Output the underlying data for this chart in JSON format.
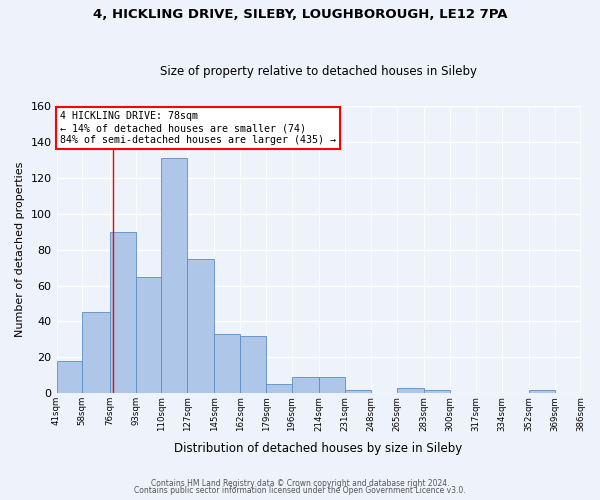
{
  "title": "4, HICKLING DRIVE, SILEBY, LOUGHBOROUGH, LE12 7PA",
  "subtitle": "Size of property relative to detached houses in Sileby",
  "xlabel": "Distribution of detached houses by size in Sileby",
  "ylabel": "Number of detached properties",
  "bar_color": "#aec6e8",
  "bar_edge_color": "#5b8ec4",
  "background_color": "#eef2fb",
  "bin_edges": [
    41,
    58,
    76,
    93,
    110,
    127,
    145,
    162,
    179,
    196,
    214,
    231,
    248,
    265,
    283,
    300,
    317,
    334,
    352,
    369,
    386
  ],
  "bin_labels": [
    "41sqm",
    "58sqm",
    "76sqm",
    "93sqm",
    "110sqm",
    "127sqm",
    "145sqm",
    "162sqm",
    "179sqm",
    "196sqm",
    "214sqm",
    "231sqm",
    "248sqm",
    "265sqm",
    "283sqm",
    "300sqm",
    "317sqm",
    "334sqm",
    "352sqm",
    "369sqm",
    "386sqm"
  ],
  "counts": [
    18,
    45,
    90,
    65,
    131,
    75,
    33,
    32,
    5,
    9,
    9,
    2,
    0,
    3,
    2,
    0,
    0,
    0,
    2,
    0
  ],
  "ylim": [
    0,
    160
  ],
  "yticks": [
    0,
    20,
    40,
    60,
    80,
    100,
    120,
    140,
    160
  ],
  "vline_x": 78,
  "annotation_title": "4 HICKLING DRIVE: 78sqm",
  "annotation_line1": "← 14% of detached houses are smaller (74)",
  "annotation_line2": "84% of semi-detached houses are larger (435) →",
  "footer1": "Contains HM Land Registry data © Crown copyright and database right 2024.",
  "footer2": "Contains public sector information licensed under the Open Government Licence v3.0."
}
